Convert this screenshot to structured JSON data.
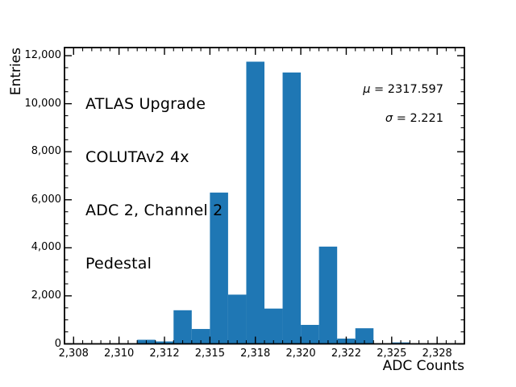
{
  "figure": {
    "background": "#ffffff",
    "text_color": "#000000"
  },
  "chart_data": {
    "type": "bar",
    "subtype": "histogram",
    "title": "",
    "xlabel": "ADC Counts",
    "ylabel": "Entries",
    "bar_color": "#1f77b4",
    "axis_color": "#000000",
    "grid": false,
    "legend": "none",
    "xlim": [
      2307,
      2329
    ],
    "ylim": [
      0,
      12337.5
    ],
    "bin_edges": [
      2311,
      2312,
      2313,
      2314,
      2315,
      2316,
      2317,
      2318,
      2319,
      2320,
      2321,
      2322,
      2323,
      2324,
      2325,
      2326
    ],
    "values": [
      170,
      100,
      1400,
      620,
      6300,
      2050,
      11750,
      1470,
      11300,
      790,
      4050,
      220,
      650,
      0,
      60,
      0
    ],
    "x_major_ticks": [
      2307.5,
      2310,
      2312.5,
      2315,
      2317.5,
      2320,
      2322.5,
      2325,
      2327.5
    ],
    "x_tick_labels": [
      "2,308",
      "2,310",
      "2,312",
      "2,315",
      "2,318",
      "2,320",
      "2,322",
      "2,325",
      "2,328"
    ],
    "x_minor_step": 0.5,
    "y_major_ticks": [
      0,
      2000,
      4000,
      6000,
      8000,
      10000,
      12000
    ],
    "y_tick_labels": [
      "0",
      "2,000",
      "4,000",
      "6,000",
      "8,000",
      "10,000",
      "12,000"
    ],
    "y_minor_step": 500,
    "tick_direction": "in",
    "annotation_lines": [
      "ATLAS Upgrade",
      "COLUTAv2 4x",
      "ADC 2, Channel 2",
      "Pedestal"
    ],
    "stats": {
      "mu_symbol": "μ",
      "mu_rest": " = 2317.597",
      "sigma_symbol": "σ",
      "sigma_rest": " = 2.221"
    }
  }
}
